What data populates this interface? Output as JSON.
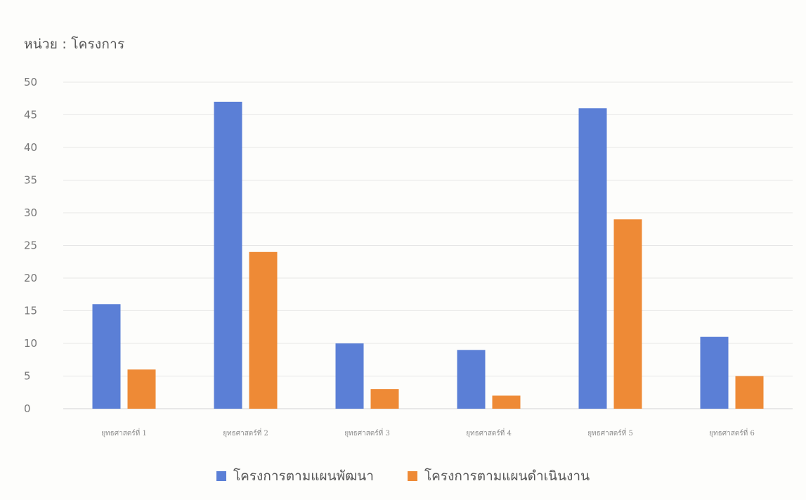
{
  "chart_data": {
    "type": "bar",
    "unit_label": "หน่วย : โครงการ",
    "categories": [
      "ยุทธศาสตร์ที่ 1",
      "ยุทธศาสตร์ที่ 2",
      "ยุทธศาสตร์ที่ 3",
      "ยุทธศาสตร์ที่ 4",
      "ยุทธศาสตร์ที่ 5",
      "ยุทธศาสตร์ที่ 6"
    ],
    "series": [
      {
        "name": "โครงการตามแผนพัฒนา",
        "color": "#5b7fd6",
        "values": [
          16,
          47,
          10,
          9,
          46,
          11
        ]
      },
      {
        "name": "โครงการตามแผนดำเนินงาน",
        "color": "#ee8a36",
        "values": [
          6,
          24,
          3,
          2,
          29,
          5
        ]
      }
    ],
    "yticks": [
      0,
      5,
      10,
      15,
      20,
      25,
      30,
      35,
      40,
      45,
      50
    ],
    "ylim": [
      0,
      50
    ],
    "grid": true,
    "legend_position": "bottom"
  }
}
